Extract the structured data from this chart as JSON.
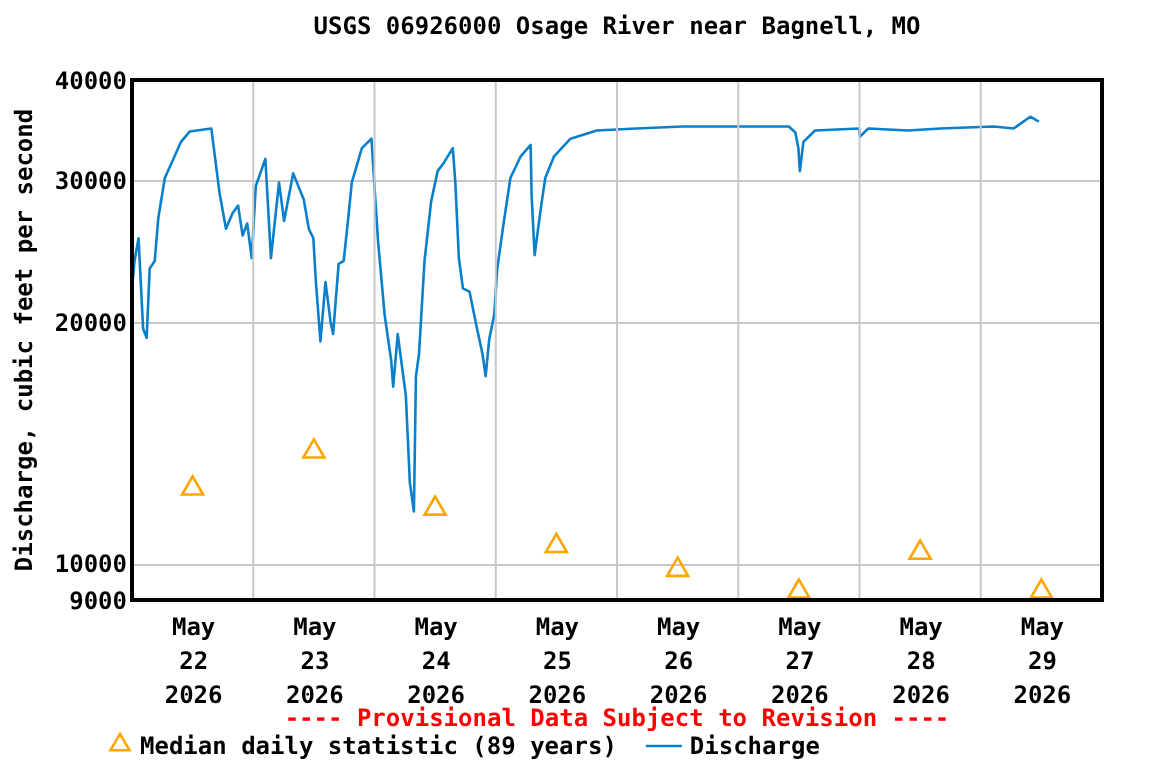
{
  "chart_data": {
    "type": "line",
    "title": "USGS 06926000 Osage River near Bagnell, MO",
    "ylabel": "Discharge, cubic feet per second",
    "annotations": [
      "---- Provisional Data Subject to Revision ----"
    ],
    "log": "y",
    "grid": true,
    "legend": "bottom",
    "xlim": [
      "2026-05-22T00:00",
      "2026-05-30T00:00"
    ],
    "xticks": [
      {
        "value": "2026-05-22T12:00",
        "label": "May\n22\n2026"
      },
      {
        "value": "2026-05-23T00:00",
        "label": null
      },
      {
        "value": "2026-05-23T12:00",
        "label": "May\n23\n2026"
      },
      {
        "value": "2026-05-24T00:00",
        "label": null
      },
      {
        "value": "2026-05-24T12:00",
        "label": "May\n24\n2026"
      },
      {
        "value": "2026-05-25T00:00",
        "label": null
      },
      {
        "value": "2026-05-25T12:00",
        "label": "May\n25\n2026"
      },
      {
        "value": "2026-05-26T00:00",
        "label": null
      },
      {
        "value": "2026-05-26T12:00",
        "label": "May\n26\n2026"
      },
      {
        "value": "2026-05-27T00:00",
        "label": null
      },
      {
        "value": "2026-05-27T12:00",
        "label": "May\n27\n2026"
      },
      {
        "value": "2026-05-28T00:00",
        "label": null
      },
      {
        "value": "2026-05-28T12:00",
        "label": "May\n28\n2026"
      },
      {
        "value": "2026-05-29T00:00",
        "label": null
      },
      {
        "value": "2026-05-29T12:00",
        "label": "May\n29\n2026"
      }
    ],
    "ylim": [
      9000,
      40000
    ],
    "yticks": [
      9000,
      10000,
      20000,
      30000,
      40000
    ],
    "series": [
      {
        "name": "Median daily statistic (89 years)",
        "type": "scatter",
        "marker": "triangle",
        "color": "#ffa500",
        "x": [
          "2026-05-22T12:00",
          "2026-05-23T12:00",
          "2026-05-24T12:00",
          "2026-05-25T12:00",
          "2026-05-26T12:00",
          "2026-05-27T12:00",
          "2026-05-28T12:00",
          "2026-05-29T12:00"
        ],
        "values": [
          12500,
          13900,
          11800,
          10600,
          9900,
          9300,
          10400,
          9300
        ]
      },
      {
        "name": "Discharge",
        "color": "#0a7fcc",
        "x": [
          "2026-05-22T00:00",
          "2026-05-22T00:30",
          "2026-05-22T01:18",
          "2026-05-22T02:12",
          "2026-05-22T02:54",
          "2026-05-22T03:30",
          "2026-05-22T04:30",
          "2026-05-22T05:12",
          "2026-05-22T06:30",
          "2026-05-22T07:54",
          "2026-05-22T09:42",
          "2026-05-22T11:24",
          "2026-05-22T15:42",
          "2026-05-22T16:12",
          "2026-05-22T17:18",
          "2026-05-22T18:36",
          "2026-05-22T19:54",
          "2026-05-22T21:00",
          "2026-05-22T21:54",
          "2026-05-22T22:48",
          "2026-05-22T23:42",
          "2026-05-23T00:30",
          "2026-05-23T02:24",
          "2026-05-23T03:30",
          "2026-05-23T05:06",
          "2026-05-23T06:06",
          "2026-05-23T07:54",
          "2026-05-23T10:00",
          "2026-05-23T11:00",
          "2026-05-23T11:54",
          "2026-05-23T12:24",
          "2026-05-23T13:18",
          "2026-05-23T14:18",
          "2026-05-23T15:18",
          "2026-05-23T15:48",
          "2026-05-23T16:54",
          "2026-05-23T17:54",
          "2026-05-23T18:48",
          "2026-05-23T19:30",
          "2026-05-23T21:30",
          "2026-05-23T23:24",
          "2026-05-23T23:48",
          "2026-05-24T00:42",
          "2026-05-24T02:00",
          "2026-05-24T03:18",
          "2026-05-24T03:42",
          "2026-05-24T04:36",
          "2026-05-24T05:42",
          "2026-05-24T06:12",
          "2026-05-24T07:00",
          "2026-05-24T07:48",
          "2026-05-24T08:12",
          "2026-05-24T08:48",
          "2026-05-24T09:54",
          "2026-05-24T11:12",
          "2026-05-24T12:30",
          "2026-05-24T13:48",
          "2026-05-24T15:30",
          "2026-05-24T16:00",
          "2026-05-24T16:42",
          "2026-05-24T17:30",
          "2026-05-24T18:48",
          "2026-05-24T20:18",
          "2026-05-24T21:24",
          "2026-05-24T22:00",
          "2026-05-24T22:42",
          "2026-05-24T23:42",
          "2026-05-25T00:18",
          "2026-05-25T01:24",
          "2026-05-25T02:54",
          "2026-05-25T04:54",
          "2026-05-25T06:54",
          "2026-05-25T07:06",
          "2026-05-25T07:42",
          "2026-05-25T08:12",
          "2026-05-25T09:00",
          "2026-05-25T09:48",
          "2026-05-25T11:30",
          "2026-05-25T14:48",
          "2026-05-25T20:00",
          "2026-05-26T03:48",
          "2026-05-26T13:00",
          "2026-05-27T10:00",
          "2026-05-27T11:18",
          "2026-05-27T11:54",
          "2026-05-27T12:12",
          "2026-05-27T12:54",
          "2026-05-27T15:12",
          "2026-05-27T23:54",
          "2026-05-28T00:06",
          "2026-05-28T01:42",
          "2026-05-28T09:36",
          "2026-05-28T16:00",
          "2026-05-29T02:36",
          "2026-05-29T06:30",
          "2026-05-29T09:48",
          "2026-05-29T11:30"
        ],
        "values": [
          22000,
          23800,
          25400,
          19600,
          19100,
          23300,
          23800,
          26900,
          30200,
          31600,
          33500,
          34500,
          34800,
          32900,
          29000,
          26100,
          27300,
          27900,
          25600,
          26500,
          24000,
          29500,
          31900,
          24000,
          29800,
          26700,
          30600,
          28400,
          26100,
          25400,
          22400,
          18900,
          22400,
          20000,
          19300,
          23600,
          23800,
          26900,
          29800,
          32900,
          33800,
          30800,
          25200,
          20400,
          17900,
          16600,
          19300,
          17100,
          16200,
          12600,
          11600,
          17100,
          18200,
          23800,
          28200,
          30800,
          31600,
          32900,
          29800,
          24000,
          22000,
          21800,
          19600,
          18200,
          17100,
          19000,
          20400,
          23300,
          26100,
          30200,
          32100,
          33200,
          28700,
          24200,
          25600,
          27900,
          30200,
          32100,
          33800,
          34600,
          34800,
          35000,
          35000,
          34400,
          32900,
          30800,
          33500,
          34600,
          34800,
          34000,
          34800,
          34600,
          34800,
          35000,
          34800,
          36000,
          35500
        ]
      }
    ]
  }
}
